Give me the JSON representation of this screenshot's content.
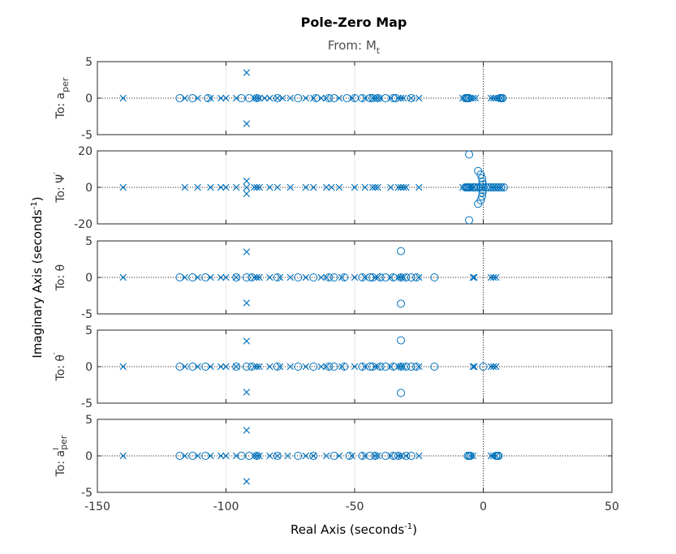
{
  "chart_data": {
    "type": "scatter",
    "title": "Pole-Zero Map",
    "subtitle": "From: M",
    "subtitle_sub": "t",
    "xlabel": "Real Axis (seconds",
    "xlabel_sup": "-1",
    "xlabel_end": ")",
    "ylabel": "Imaginary Axis (seconds",
    "ylabel_sup": "-1",
    "ylabel_end": ")",
    "xlim": [
      -150,
      50
    ],
    "xticks": [
      "-150",
      "-100",
      "-50",
      "0",
      "50"
    ],
    "grid": true,
    "marker_color": "#0072bd",
    "markers": {
      "pole": "x",
      "zero": "o"
    },
    "panels": [
      {
        "label_main": "To: a",
        "label_sub": "per",
        "label_sup": "",
        "ylim": [
          -5,
          5
        ],
        "yticks": [
          "5",
          "0",
          "-5"
        ],
        "poles": [
          [
            -140,
            0
          ],
          [
            -116,
            0
          ],
          [
            -111,
            0
          ],
          [
            -106,
            0
          ],
          [
            -102,
            0
          ],
          [
            -100,
            0
          ],
          [
            -96,
            0
          ],
          [
            -92,
            3.5
          ],
          [
            -92,
            -3.5
          ],
          [
            -89,
            0
          ],
          [
            -88,
            0
          ],
          [
            -87,
            0
          ],
          [
            -85,
            0
          ],
          [
            -83,
            0
          ],
          [
            -80,
            0
          ],
          [
            -78,
            0
          ],
          [
            -75,
            0
          ],
          [
            -69,
            0
          ],
          [
            -66,
            0
          ],
          [
            -63,
            0
          ],
          [
            -61,
            0
          ],
          [
            -56,
            0
          ],
          [
            -51,
            0
          ],
          [
            -46,
            0
          ],
          [
            -43,
            0
          ],
          [
            -42,
            0
          ],
          [
            -41,
            0
          ],
          [
            -40,
            0
          ],
          [
            -36,
            0
          ],
          [
            -33,
            0
          ],
          [
            -32,
            0
          ],
          [
            -31,
            0
          ],
          [
            -28,
            0
          ],
          [
            -25,
            0
          ],
          [
            -8,
            0
          ],
          [
            -6,
            0
          ],
          [
            -5,
            0
          ],
          [
            -4,
            0
          ],
          [
            -3,
            0
          ],
          [
            3,
            0
          ],
          [
            4,
            0
          ],
          [
            5,
            0
          ],
          [
            6,
            0
          ],
          [
            7,
            0
          ]
        ],
        "zeros": [
          [
            -118,
            0
          ],
          [
            -113,
            0
          ],
          [
            -107,
            0
          ],
          [
            -94,
            0
          ],
          [
            -91,
            0
          ],
          [
            -88,
            0
          ],
          [
            -80,
            0
          ],
          [
            -72,
            0
          ],
          [
            -65,
            0
          ],
          [
            -60,
            0
          ],
          [
            -58,
            0
          ],
          [
            -53,
            0
          ],
          [
            -50,
            0
          ],
          [
            -47,
            0
          ],
          [
            -44,
            0
          ],
          [
            -43,
            0
          ],
          [
            -41,
            0
          ],
          [
            -38,
            0
          ],
          [
            -35,
            0
          ],
          [
            -34,
            0
          ],
          [
            -28,
            0
          ],
          [
            -7,
            0
          ],
          [
            -6.5,
            0
          ],
          [
            -6,
            0
          ],
          [
            -5.5,
            0
          ],
          [
            6.5,
            0
          ],
          [
            7,
            0
          ],
          [
            7.5,
            0
          ]
        ]
      },
      {
        "label_main": "To: Ψ",
        "label_sub": "",
        "label_sup": "′",
        "ylim": [
          -20,
          20
        ],
        "yticks": [
          "20",
          "0",
          "-20"
        ],
        "poles": [
          [
            -140,
            0
          ],
          [
            -116,
            0
          ],
          [
            -111,
            0
          ],
          [
            -106,
            0
          ],
          [
            -102,
            0
          ],
          [
            -100,
            0
          ],
          [
            -96,
            0
          ],
          [
            -92,
            3.5
          ],
          [
            -92,
            -3.5
          ],
          [
            -92,
            0
          ],
          [
            -89,
            0
          ],
          [
            -88,
            0
          ],
          [
            -87,
            0
          ],
          [
            -83,
            0
          ],
          [
            -80,
            0
          ],
          [
            -75,
            0
          ],
          [
            -69,
            0
          ],
          [
            -66,
            0
          ],
          [
            -61,
            0
          ],
          [
            -59,
            0
          ],
          [
            -56,
            0
          ],
          [
            -50,
            0
          ],
          [
            -46,
            0
          ],
          [
            -43,
            0
          ],
          [
            -42,
            0
          ],
          [
            -41,
            0
          ],
          [
            -36,
            0
          ],
          [
            -33,
            0
          ],
          [
            -32,
            0
          ],
          [
            -31,
            0
          ],
          [
            -30,
            0
          ],
          [
            -25,
            0
          ],
          [
            -8,
            0
          ],
          [
            -6,
            0
          ],
          [
            -5,
            0
          ],
          [
            -4,
            0
          ],
          [
            3,
            0
          ],
          [
            4,
            0
          ],
          [
            5,
            0
          ],
          [
            6,
            0
          ],
          [
            7,
            0
          ]
        ],
        "zeros": [
          [
            -7,
            0
          ],
          [
            -6.5,
            0
          ],
          [
            -6,
            0
          ],
          [
            -5.5,
            0
          ],
          [
            -5,
            0
          ],
          [
            -4,
            0
          ],
          [
            -3.5,
            0
          ],
          [
            -3,
            0
          ],
          [
            -2,
            0
          ],
          [
            -1,
            0
          ],
          [
            0,
            0
          ],
          [
            1,
            0
          ],
          [
            2,
            0
          ],
          [
            3,
            0
          ],
          [
            4,
            0
          ],
          [
            5,
            0
          ],
          [
            6,
            0
          ],
          [
            7,
            0
          ],
          [
            8,
            0
          ],
          [
            -5.5,
            18
          ],
          [
            -5.5,
            -18
          ],
          [
            -2,
            9
          ],
          [
            -2,
            -9
          ],
          [
            -1,
            7
          ],
          [
            -1,
            -7
          ],
          [
            -0.5,
            5
          ],
          [
            -0.5,
            -5
          ],
          [
            -0.3,
            3
          ],
          [
            -0.3,
            -3
          ],
          [
            -0.2,
            1.5
          ],
          [
            -0.2,
            -1.5
          ]
        ]
      },
      {
        "label_main": "To: θ",
        "label_sub": "",
        "label_sup": "",
        "ylim": [
          -5,
          5
        ],
        "yticks": [
          "5",
          "0",
          "-5"
        ],
        "poles": [
          [
            -140,
            0
          ],
          [
            -116,
            0
          ],
          [
            -111,
            0
          ],
          [
            -106,
            0
          ],
          [
            -102,
            0
          ],
          [
            -100,
            0
          ],
          [
            -96,
            0
          ],
          [
            -92,
            3.5
          ],
          [
            -92,
            -3.5
          ],
          [
            -89,
            0
          ],
          [
            -88,
            0
          ],
          [
            -87,
            0
          ],
          [
            -83,
            0
          ],
          [
            -79,
            0
          ],
          [
            -75,
            0
          ],
          [
            -69,
            0
          ],
          [
            -63,
            0
          ],
          [
            -61,
            0
          ],
          [
            -55,
            0
          ],
          [
            -50,
            0
          ],
          [
            -46,
            0
          ],
          [
            -42,
            0
          ],
          [
            -41,
            0
          ],
          [
            -36,
            0
          ],
          [
            -33,
            0
          ],
          [
            -32,
            0
          ],
          [
            -31,
            0
          ],
          [
            -25,
            0
          ],
          [
            -4,
            0
          ],
          [
            -3.5,
            0
          ],
          [
            3,
            0
          ],
          [
            4,
            0
          ],
          [
            5,
            0
          ]
        ],
        "zeros": [
          [
            -118,
            0
          ],
          [
            -113,
            0
          ],
          [
            -108,
            0
          ],
          [
            -96,
            0
          ],
          [
            -92,
            0
          ],
          [
            -90,
            0
          ],
          [
            -80,
            0
          ],
          [
            -72,
            0
          ],
          [
            -66,
            0
          ],
          [
            -60,
            0
          ],
          [
            -58,
            0
          ],
          [
            -54,
            0
          ],
          [
            -47,
            0
          ],
          [
            -44,
            0
          ],
          [
            -43,
            0
          ],
          [
            -40,
            0
          ],
          [
            -38,
            0
          ],
          [
            -35,
            0
          ],
          [
            -32,
            3.6
          ],
          [
            -32,
            -3.6
          ],
          [
            -32,
            0
          ],
          [
            -30,
            0
          ],
          [
            -28,
            0
          ],
          [
            -26,
            0
          ],
          [
            -19,
            0
          ]
        ]
      },
      {
        "label_main": "To: θ",
        "label_sub": "",
        "label_sup": "′",
        "ylim": [
          -5,
          5
        ],
        "yticks": [
          "5",
          "0",
          "-5"
        ],
        "poles": [
          [
            -140,
            0
          ],
          [
            -116,
            0
          ],
          [
            -111,
            0
          ],
          [
            -106,
            0
          ],
          [
            -102,
            0
          ],
          [
            -100,
            0
          ],
          [
            -96,
            0
          ],
          [
            -92,
            3.5
          ],
          [
            -92,
            -3.5
          ],
          [
            -89,
            0
          ],
          [
            -88,
            0
          ],
          [
            -87,
            0
          ],
          [
            -83,
            0
          ],
          [
            -79,
            0
          ],
          [
            -75,
            0
          ],
          [
            -69,
            0
          ],
          [
            -63,
            0
          ],
          [
            -61,
            0
          ],
          [
            -55,
            0
          ],
          [
            -50,
            0
          ],
          [
            -46,
            0
          ],
          [
            -42,
            0
          ],
          [
            -41,
            0
          ],
          [
            -36,
            0
          ],
          [
            -33,
            0
          ],
          [
            -32,
            0
          ],
          [
            -31,
            0
          ],
          [
            -25,
            0
          ],
          [
            -4,
            0
          ],
          [
            -3.5,
            0
          ],
          [
            3,
            0
          ],
          [
            4,
            0
          ],
          [
            5,
            0
          ]
        ],
        "zeros": [
          [
            -118,
            0
          ],
          [
            -113,
            0
          ],
          [
            -108,
            0
          ],
          [
            -96,
            0
          ],
          [
            -92,
            0
          ],
          [
            -90,
            0
          ],
          [
            -80,
            0
          ],
          [
            -72,
            0
          ],
          [
            -66,
            0
          ],
          [
            -60,
            0
          ],
          [
            -58,
            0
          ],
          [
            -54,
            0
          ],
          [
            -47,
            0
          ],
          [
            -44,
            0
          ],
          [
            -43,
            0
          ],
          [
            -40,
            0
          ],
          [
            -38,
            0
          ],
          [
            -35,
            0
          ],
          [
            -32,
            3.6
          ],
          [
            -32,
            -3.6
          ],
          [
            -32,
            0
          ],
          [
            -30,
            0
          ],
          [
            -28,
            0
          ],
          [
            -26,
            0
          ],
          [
            -19,
            0
          ],
          [
            0,
            0
          ]
        ]
      },
      {
        "label_main": "To: a",
        "label_sub": "per",
        "label_sup": "I",
        "ylim": [
          -5,
          5
        ],
        "yticks": [
          "5",
          "0",
          "-5"
        ],
        "poles": [
          [
            -140,
            0
          ],
          [
            -116,
            0
          ],
          [
            -111,
            0
          ],
          [
            -106,
            0
          ],
          [
            -102,
            0
          ],
          [
            -100,
            0
          ],
          [
            -96,
            0
          ],
          [
            -92,
            3.5
          ],
          [
            -92,
            -3.5
          ],
          [
            -89,
            0
          ],
          [
            -88,
            0
          ],
          [
            -87,
            0
          ],
          [
            -83,
            0
          ],
          [
            -80,
            0
          ],
          [
            -76,
            0
          ],
          [
            -69,
            0
          ],
          [
            -66,
            0
          ],
          [
            -61,
            0
          ],
          [
            -56,
            0
          ],
          [
            -51,
            0
          ],
          [
            -46,
            0
          ],
          [
            -42,
            0
          ],
          [
            -41,
            0
          ],
          [
            -36,
            0
          ],
          [
            -33,
            0
          ],
          [
            -32,
            0
          ],
          [
            -30,
            0
          ],
          [
            -25,
            0
          ],
          [
            -5,
            0
          ],
          [
            -4,
            0
          ],
          [
            3,
            0
          ],
          [
            4,
            0
          ],
          [
            5,
            0
          ]
        ],
        "zeros": [
          [
            -118,
            0
          ],
          [
            -113,
            0
          ],
          [
            -108,
            0
          ],
          [
            -94,
            0
          ],
          [
            -91,
            0
          ],
          [
            -88,
            0
          ],
          [
            -80,
            0
          ],
          [
            -72,
            0
          ],
          [
            -66,
            0
          ],
          [
            -58,
            0
          ],
          [
            -52,
            0
          ],
          [
            -47,
            0
          ],
          [
            -44,
            0
          ],
          [
            -42,
            0
          ],
          [
            -38,
            0
          ],
          [
            -35,
            0
          ],
          [
            -33,
            0
          ],
          [
            -30,
            0
          ],
          [
            -28,
            0
          ],
          [
            -6,
            0
          ],
          [
            -5.5,
            0
          ],
          [
            -5,
            0
          ],
          [
            5,
            0
          ],
          [
            5.5,
            0
          ],
          [
            6,
            0
          ]
        ]
      }
    ]
  }
}
